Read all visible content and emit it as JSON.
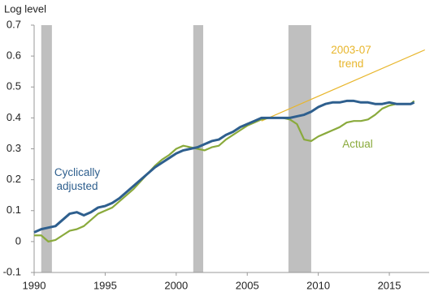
{
  "chart_data": {
    "type": "line",
    "y_axis_title": "Log level",
    "xlim": [
      1990,
      2017.8
    ],
    "xticks": [
      1990,
      1995,
      2000,
      2005,
      2010,
      2015
    ],
    "ylim": [
      -0.1,
      0.7
    ],
    "yticks": [
      -0.1,
      0,
      0.1,
      0.2,
      0.3,
      0.4,
      0.5,
      0.6,
      0.7
    ],
    "grid": false,
    "shaded_periods": {
      "color": "#bfbfbf",
      "spans": [
        [
          1990.5,
          1991.25
        ],
        [
          2001.2,
          2001.9
        ],
        [
          2007.9,
          2009.5
        ]
      ]
    },
    "series": [
      {
        "name": "2003-07 trend",
        "color": "#e8b62c",
        "x": [
          2006,
          2017.5
        ],
        "values": [
          0.39,
          0.62
        ]
      },
      {
        "name": "Actual",
        "color": "#8aaa3c",
        "x": [
          1990,
          1990.5,
          1991,
          1991.5,
          1992,
          1992.5,
          1993,
          1993.5,
          1994,
          1994.5,
          1995,
          1995.5,
          1996,
          1996.5,
          1997,
          1997.5,
          1998,
          1998.5,
          1999,
          1999.5,
          2000,
          2000.5,
          2001,
          2001.5,
          2002,
          2002.5,
          2003,
          2003.5,
          2004,
          2004.5,
          2005,
          2005.5,
          2006,
          2006.5,
          2007,
          2007.5,
          2008,
          2008.5,
          2009,
          2009.5,
          2010,
          2010.5,
          2011,
          2011.5,
          2012,
          2012.5,
          2013,
          2013.5,
          2014,
          2014.5,
          2015,
          2015.5,
          2016,
          2016.5,
          2016.75
        ],
        "values": [
          0.02,
          0.02,
          0.0,
          0.005,
          0.02,
          0.035,
          0.04,
          0.05,
          0.07,
          0.09,
          0.1,
          0.11,
          0.13,
          0.15,
          0.17,
          0.195,
          0.22,
          0.245,
          0.265,
          0.28,
          0.3,
          0.31,
          0.305,
          0.3,
          0.295,
          0.305,
          0.31,
          0.33,
          0.345,
          0.36,
          0.375,
          0.385,
          0.395,
          0.4,
          0.4,
          0.4,
          0.395,
          0.38,
          0.33,
          0.325,
          0.34,
          0.35,
          0.36,
          0.37,
          0.385,
          0.39,
          0.39,
          0.395,
          0.41,
          0.43,
          0.44,
          0.445,
          0.445,
          0.445,
          0.455
        ]
      },
      {
        "name": "Cyclically adjusted",
        "color": "#2e5f8e",
        "x": [
          1990,
          1990.5,
          1991,
          1991.5,
          1992,
          1992.5,
          1993,
          1993.5,
          1994,
          1994.5,
          1995,
          1995.5,
          1996,
          1996.5,
          1997,
          1997.5,
          1998,
          1998.5,
          1999,
          1999.5,
          2000,
          2000.5,
          2001,
          2001.5,
          2002,
          2002.5,
          2003,
          2003.5,
          2004,
          2004.5,
          2005,
          2005.5,
          2006,
          2006.5,
          2007,
          2007.5,
          2008,
          2008.5,
          2009,
          2009.5,
          2010,
          2010.5,
          2011,
          2011.5,
          2012,
          2012.5,
          2013,
          2013.5,
          2014,
          2014.5,
          2015,
          2015.5,
          2016,
          2016.5,
          2016.75
        ],
        "values": [
          0.03,
          0.04,
          0.045,
          0.05,
          0.07,
          0.09,
          0.095,
          0.085,
          0.095,
          0.11,
          0.115,
          0.125,
          0.14,
          0.16,
          0.18,
          0.2,
          0.22,
          0.24,
          0.255,
          0.27,
          0.285,
          0.295,
          0.3,
          0.305,
          0.315,
          0.325,
          0.33,
          0.345,
          0.355,
          0.37,
          0.38,
          0.39,
          0.4,
          0.4,
          0.4,
          0.4,
          0.4,
          0.405,
          0.41,
          0.42,
          0.435,
          0.445,
          0.45,
          0.45,
          0.455,
          0.455,
          0.45,
          0.45,
          0.445,
          0.445,
          0.45,
          0.445,
          0.445,
          0.445,
          0.45
        ]
      }
    ]
  }
}
